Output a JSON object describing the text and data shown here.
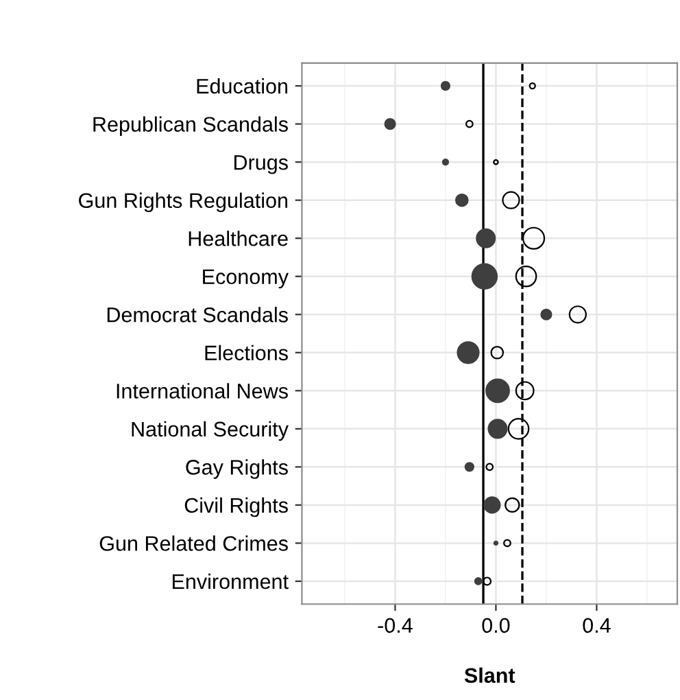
{
  "chart_data": {
    "type": "bubble",
    "orientation": "horizontal",
    "xlabel": "Slant",
    "categories": [
      "Education",
      "Republican Scandals",
      "Drugs",
      "Gun Rights Regulation",
      "Healthcare",
      "Economy",
      "Democrat Scandals",
      "Elections",
      "International News",
      "National Security",
      "Gay Rights",
      "Civil Rights",
      "Gun Related Crimes",
      "Environment"
    ],
    "series": [
      {
        "color": "#3f3f3f",
        "values": [
          -0.2,
          -0.42,
          -0.2,
          -0.135,
          -0.04,
          -0.045,
          0.2,
          -0.11,
          0.007,
          0.007,
          -0.105,
          -0.015,
          0.0,
          -0.07
        ],
        "sizes": [
          0.11,
          0.17,
          0.05,
          0.23,
          0.55,
          1,
          0.17,
          0.73,
          0.86,
          0.55,
          0.11,
          0.4,
          0.02,
          0.07
        ]
      },
      {
        "color": "#000000",
        "values": [
          0.145,
          -0.105,
          0.0,
          0.06,
          0.15,
          0.12,
          0.325,
          0.005,
          0.115,
          0.09,
          -0.025,
          0.065,
          0.045,
          -0.035
        ],
        "sizes": [
          0.05,
          0.07,
          0.03,
          0.44,
          0.73,
          0.66,
          0.44,
          0.23,
          0.5,
          0.66,
          0.07,
          0.31,
          0.07,
          0.09
        ]
      }
    ],
    "xlim": [
      -0.77,
      0.72
    ],
    "xticks": [
      -0.4,
      {
        "value": 0.0,
        "label": "0.0"
      },
      0.4
    ],
    "ref_lines": [
      {
        "axis": "x",
        "value": -0.05,
        "line_style": "solid",
        "color": "#000000"
      },
      {
        "axis": "x",
        "value": 0.105,
        "line_style": "dashed",
        "color": "#000000"
      }
    ],
    "grid": true
  }
}
